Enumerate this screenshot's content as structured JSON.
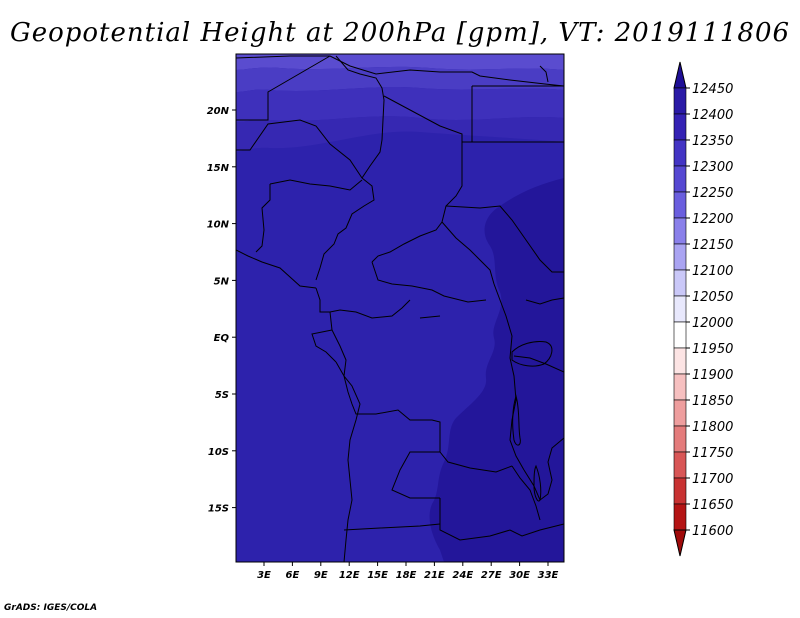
{
  "title": "Geopotential Height at 200hPa [gpm], VT: 2019111806",
  "credit": "GrADS: IGES/COLA",
  "map": {
    "lat_labels": [
      "20N",
      "15N",
      "10N",
      "5N",
      "EQ",
      "5S",
      "10S",
      "15S"
    ],
    "lon_labels": [
      "3E",
      "6E",
      "9E",
      "12E",
      "15E",
      "18E",
      "21E",
      "24E",
      "27E",
      "30E",
      "33E"
    ]
  },
  "colorbar": {
    "levels": [
      "12450",
      "12400",
      "12350",
      "12300",
      "12250",
      "12200",
      "12150",
      "12100",
      "12050",
      "12000",
      "11950",
      "11900",
      "11850",
      "11800",
      "11750",
      "11700",
      "11650",
      "11600"
    ],
    "colors": [
      "#1e0e96",
      "#2a1aa6",
      "#3422b4",
      "#4334c4",
      "#5648d2",
      "#6a5ede",
      "#8a80ea",
      "#aaa4f2",
      "#cac8f8",
      "#e8e8fc",
      "#ffffff",
      "#fce4e4",
      "#f6c0c0",
      "#ee9e9e",
      "#e47c7c",
      "#d85656",
      "#c83232",
      "#b41414",
      "#a00a0a"
    ]
  },
  "fields": {
    "base_color": "#2d22ac",
    "band_colors": [
      "#5a4ccf",
      "#4a3dc4",
      "#3e30bb",
      "#3628b2"
    ],
    "east_color": "#23169a"
  }
}
